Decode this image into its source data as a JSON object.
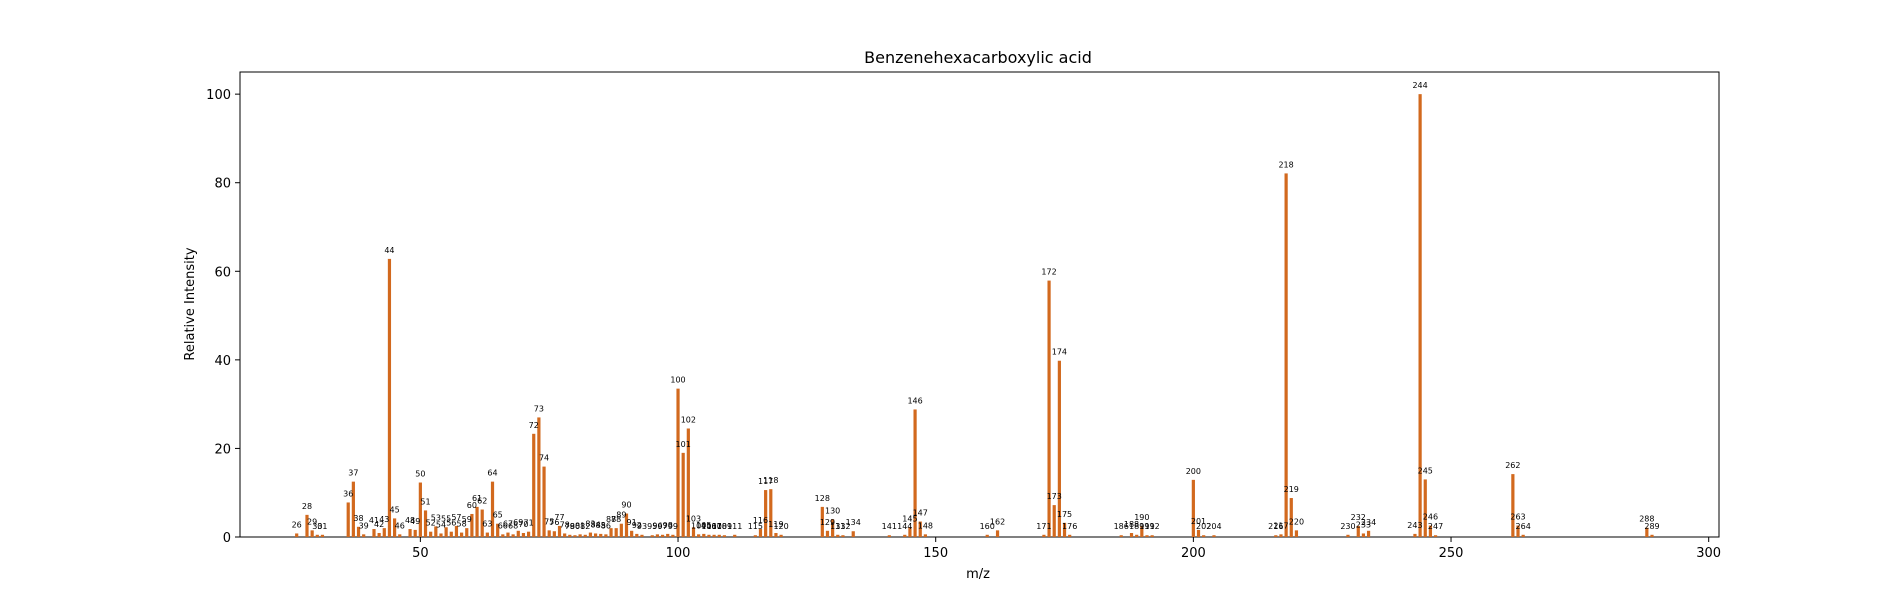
{
  "chart_data": {
    "type": "bar",
    "title": "Benzenehexacarboxylic acid",
    "xlabel": "m/z",
    "ylabel": "Relative Intensity",
    "xlim": [
      15,
      302
    ],
    "ylim": [
      0,
      105
    ],
    "xticks": [
      50,
      100,
      150,
      200,
      250,
      300
    ],
    "yticks": [
      0,
      20,
      40,
      60,
      80,
      100
    ],
    "grid": false,
    "legend": "none",
    "bar_color": "#d2691e",
    "series": [
      {
        "peaks": [
          {
            "mz": 26,
            "intensity": 0.8
          },
          {
            "mz": 28,
            "intensity": 5.0
          },
          {
            "mz": 29,
            "intensity": 1.5
          },
          {
            "mz": 30,
            "intensity": 0.5
          },
          {
            "mz": 31,
            "intensity": 0.5
          },
          {
            "mz": 36,
            "intensity": 7.8
          },
          {
            "mz": 37,
            "intensity": 12.5
          },
          {
            "mz": 38,
            "intensity": 2.3
          },
          {
            "mz": 39,
            "intensity": 0.6
          },
          {
            "mz": 41,
            "intensity": 1.8
          },
          {
            "mz": 42,
            "intensity": 0.9
          },
          {
            "mz": 43,
            "intensity": 2.0
          },
          {
            "mz": 44,
            "intensity": 62.8
          },
          {
            "mz": 45,
            "intensity": 4.2
          },
          {
            "mz": 46,
            "intensity": 0.6
          },
          {
            "mz": 48,
            "intensity": 1.8
          },
          {
            "mz": 49,
            "intensity": 1.6
          },
          {
            "mz": 50,
            "intensity": 12.3
          },
          {
            "mz": 51,
            "intensity": 6.0
          },
          {
            "mz": 52,
            "intensity": 1.2
          },
          {
            "mz": 53,
            "intensity": 2.4
          },
          {
            "mz": 54,
            "intensity": 0.8
          },
          {
            "mz": 55,
            "intensity": 2.2
          },
          {
            "mz": 56,
            "intensity": 1.2
          },
          {
            "mz": 57,
            "intensity": 2.5
          },
          {
            "mz": 58,
            "intensity": 1.0
          },
          {
            "mz": 59,
            "intensity": 2.0
          },
          {
            "mz": 60,
            "intensity": 5.2
          },
          {
            "mz": 61,
            "intensity": 6.8
          },
          {
            "mz": 62,
            "intensity": 6.2
          },
          {
            "mz": 63,
            "intensity": 1.0
          },
          {
            "mz": 64,
            "intensity": 12.5
          },
          {
            "mz": 65,
            "intensity": 3.0
          },
          {
            "mz": 66,
            "intensity": 0.6
          },
          {
            "mz": 67,
            "intensity": 1.0
          },
          {
            "mz": 68,
            "intensity": 0.6
          },
          {
            "mz": 69,
            "intensity": 1.4
          },
          {
            "mz": 70,
            "intensity": 0.9
          },
          {
            "mz": 71,
            "intensity": 1.2
          },
          {
            "mz": 72,
            "intensity": 23.3
          },
          {
            "mz": 73,
            "intensity": 27.0
          },
          {
            "mz": 74,
            "intensity": 15.9
          },
          {
            "mz": 75,
            "intensity": 1.5
          },
          {
            "mz": 76,
            "intensity": 1.3
          },
          {
            "mz": 77,
            "intensity": 2.5
          },
          {
            "mz": 78,
            "intensity": 0.8
          },
          {
            "mz": 79,
            "intensity": 0.5
          },
          {
            "mz": 80,
            "intensity": 0.4
          },
          {
            "mz": 81,
            "intensity": 0.6
          },
          {
            "mz": 82,
            "intensity": 0.5
          },
          {
            "mz": 83,
            "intensity": 1.0
          },
          {
            "mz": 84,
            "intensity": 0.8
          },
          {
            "mz": 85,
            "intensity": 0.7
          },
          {
            "mz": 86,
            "intensity": 0.6
          },
          {
            "mz": 87,
            "intensity": 2.0
          },
          {
            "mz": 88,
            "intensity": 2.0
          },
          {
            "mz": 89,
            "intensity": 3.0
          },
          {
            "mz": 90,
            "intensity": 5.3
          },
          {
            "mz": 91,
            "intensity": 1.4
          },
          {
            "mz": 92,
            "intensity": 0.7
          },
          {
            "mz": 93,
            "intensity": 0.5
          },
          {
            "mz": 95,
            "intensity": 0.4
          },
          {
            "mz": 96,
            "intensity": 0.6
          },
          {
            "mz": 97,
            "intensity": 0.5
          },
          {
            "mz": 98,
            "intensity": 0.7
          },
          {
            "mz": 99,
            "intensity": 0.5
          },
          {
            "mz": 100,
            "intensity": 33.5
          },
          {
            "mz": 101,
            "intensity": 19.0
          },
          {
            "mz": 102,
            "intensity": 24.5
          },
          {
            "mz": 103,
            "intensity": 2.2
          },
          {
            "mz": 104,
            "intensity": 0.6
          },
          {
            "mz": 105,
            "intensity": 0.7
          },
          {
            "mz": 106,
            "intensity": 0.5
          },
          {
            "mz": 107,
            "intensity": 0.5
          },
          {
            "mz": 108,
            "intensity": 0.5
          },
          {
            "mz": 109,
            "intensity": 0.4
          },
          {
            "mz": 111,
            "intensity": 0.5
          },
          {
            "mz": 115,
            "intensity": 0.4
          },
          {
            "mz": 116,
            "intensity": 1.8
          },
          {
            "mz": 117,
            "intensity": 10.6
          },
          {
            "mz": 118,
            "intensity": 10.8
          },
          {
            "mz": 119,
            "intensity": 0.9
          },
          {
            "mz": 120,
            "intensity": 0.5
          },
          {
            "mz": 128,
            "intensity": 6.8
          },
          {
            "mz": 129,
            "intensity": 1.4
          },
          {
            "mz": 130,
            "intensity": 4.0
          },
          {
            "mz": 131,
            "intensity": 0.5
          },
          {
            "mz": 132,
            "intensity": 0.4
          },
          {
            "mz": 134,
            "intensity": 1.3
          },
          {
            "mz": 141,
            "intensity": 0.4
          },
          {
            "mz": 144,
            "intensity": 0.5
          },
          {
            "mz": 145,
            "intensity": 2.2
          },
          {
            "mz": 146,
            "intensity": 28.8
          },
          {
            "mz": 147,
            "intensity": 3.5
          },
          {
            "mz": 148,
            "intensity": 0.6
          },
          {
            "mz": 160,
            "intensity": 0.5
          },
          {
            "mz": 162,
            "intensity": 1.5
          },
          {
            "mz": 171,
            "intensity": 0.5
          },
          {
            "mz": 172,
            "intensity": 57.9
          },
          {
            "mz": 173,
            "intensity": 7.2
          },
          {
            "mz": 174,
            "intensity": 39.8
          },
          {
            "mz": 175,
            "intensity": 3.2
          },
          {
            "mz": 176,
            "intensity": 0.5
          },
          {
            "mz": 186,
            "intensity": 0.4
          },
          {
            "mz": 188,
            "intensity": 0.9
          },
          {
            "mz": 189,
            "intensity": 0.5
          },
          {
            "mz": 190,
            "intensity": 2.5
          },
          {
            "mz": 191,
            "intensity": 0.4
          },
          {
            "mz": 192,
            "intensity": 0.4
          },
          {
            "mz": 200,
            "intensity": 12.9
          },
          {
            "mz": 201,
            "intensity": 1.6
          },
          {
            "mz": 202,
            "intensity": 0.4
          },
          {
            "mz": 204,
            "intensity": 0.4
          },
          {
            "mz": 216,
            "intensity": 0.4
          },
          {
            "mz": 217,
            "intensity": 0.6
          },
          {
            "mz": 218,
            "intensity": 82.1
          },
          {
            "mz": 219,
            "intensity": 8.8
          },
          {
            "mz": 220,
            "intensity": 1.5
          },
          {
            "mz": 230,
            "intensity": 0.5
          },
          {
            "mz": 232,
            "intensity": 2.5
          },
          {
            "mz": 233,
            "intensity": 0.8
          },
          {
            "mz": 234,
            "intensity": 1.4
          },
          {
            "mz": 243,
            "intensity": 0.7
          },
          {
            "mz": 244,
            "intensity": 100.0
          },
          {
            "mz": 245,
            "intensity": 13.0
          },
          {
            "mz": 246,
            "intensity": 2.6
          },
          {
            "mz": 247,
            "intensity": 0.4
          },
          {
            "mz": 262,
            "intensity": 14.2
          },
          {
            "mz": 263,
            "intensity": 2.6
          },
          {
            "mz": 264,
            "intensity": 0.5
          },
          {
            "mz": 288,
            "intensity": 2.1
          },
          {
            "mz": 289,
            "intensity": 0.5
          }
        ]
      }
    ]
  }
}
